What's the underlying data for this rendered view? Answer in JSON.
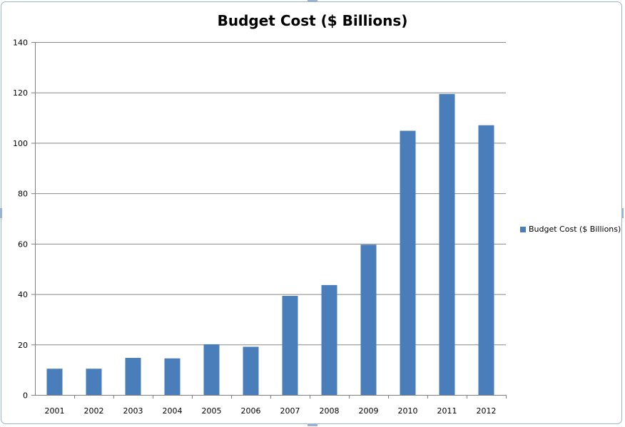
{
  "colors": {
    "bar": "#4a7ebb",
    "gridline": "#878787",
    "frame_border": "#9ab3d2"
  },
  "chart_data": {
    "type": "bar",
    "title": "Budget Cost ($ Billions)",
    "xlabel": "",
    "ylabel": "",
    "categories": [
      "2001",
      "2002",
      "2003",
      "2004",
      "2005",
      "2006",
      "2007",
      "2008",
      "2009",
      "2010",
      "2011",
      "2012"
    ],
    "series": [
      {
        "name": "Budget Cost ($ Billions)",
        "values": [
          10.4,
          10.4,
          14.7,
          14.5,
          20.1,
          19.1,
          39.3,
          43.6,
          59.6,
          104.8,
          119.4,
          107.0
        ]
      }
    ],
    "ylim": [
      0,
      140
    ],
    "yticks": [
      "0",
      "20",
      "40",
      "60",
      "80",
      "100",
      "120",
      "140"
    ],
    "grid": true,
    "legend_position": "right"
  }
}
